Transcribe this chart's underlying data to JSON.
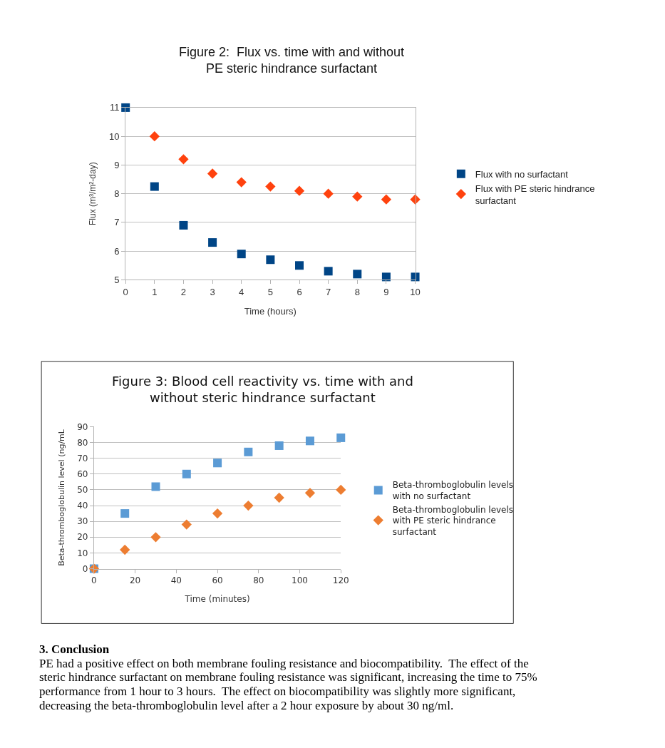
{
  "chart_data": [
    {
      "type": "scatter",
      "title": "Figure 2:  Flux vs. time with and without\nPE steric hindrance surfactant",
      "xlabel": "Time (hours)",
      "ylabel": "Flux (m³/m²-day)",
      "x": [
        0,
        1,
        2,
        3,
        4,
        5,
        6,
        7,
        8,
        9,
        10
      ],
      "series": [
        {
          "name": "Flux with no surfactant",
          "color": "#004586",
          "marker": "square",
          "values": [
            11,
            8.25,
            6.9,
            6.3,
            5.9,
            5.7,
            5.5,
            5.3,
            5.2,
            5.1,
            5.1
          ]
        },
        {
          "name": "Flux with PE steric hindrance\nsurfactant",
          "color": "#ff420e",
          "marker": "diamond",
          "values": [
            null,
            10,
            9.2,
            8.7,
            8.4,
            8.25,
            8.1,
            8.0,
            7.9,
            7.8,
            7.8
          ]
        }
      ],
      "xlim": [
        0,
        10
      ],
      "xticks": [
        0,
        1,
        2,
        3,
        4,
        5,
        6,
        7,
        8,
        9,
        10
      ],
      "ylim": [
        5,
        11
      ],
      "yticks": [
        5,
        6,
        7,
        8,
        9,
        10,
        11
      ],
      "grid": "y",
      "legend": "right"
    },
    {
      "type": "scatter",
      "title": "Figure 3: Blood cell reactivity vs. time with and\nwithout steric hindrance surfactant",
      "xlabel": "Time (minutes)",
      "ylabel": "Beta-thromboglobulin level (ng/mL",
      "x": [
        0,
        15,
        30,
        45,
        60,
        75,
        90,
        105,
        120
      ],
      "series": [
        {
          "name": "Beta-thromboglobulin levels\nwith no surfactant",
          "color": "#5b9bd5",
          "marker": "square",
          "values": [
            0,
            35,
            52,
            60,
            67,
            74,
            78,
            81,
            83
          ]
        },
        {
          "name": "Beta-thromboglobulin levels\nwith PE steric hindrance\nsurfactant",
          "color": "#ed7d31",
          "marker": "diamond",
          "values": [
            0,
            12,
            20,
            28,
            35,
            40,
            45,
            48,
            50
          ]
        }
      ],
      "xlim": [
        0,
        120
      ],
      "xticks": [
        0,
        20,
        40,
        60,
        80,
        100,
        120
      ],
      "ylim": [
        0,
        90
      ],
      "yticks": [
        0,
        10,
        20,
        30,
        40,
        50,
        60,
        70,
        80,
        90
      ],
      "grid": "y",
      "legend": "right",
      "annotations": [
        "3. Conclusion",
        "PE had a positive effect on both membrane fouling resistance and biocompatibility.  The effect of the",
        "steric hindrance surfactant on membrane fouling resistance was significant, increasing the time to 75%",
        "performance from 1 hour to 3 hours.  The effect on biocompatibility was slightly more significant,",
        "decreasing the beta-thromboglobulin level after a 2 hour exposure by about 30 ng/ml."
      ]
    }
  ]
}
